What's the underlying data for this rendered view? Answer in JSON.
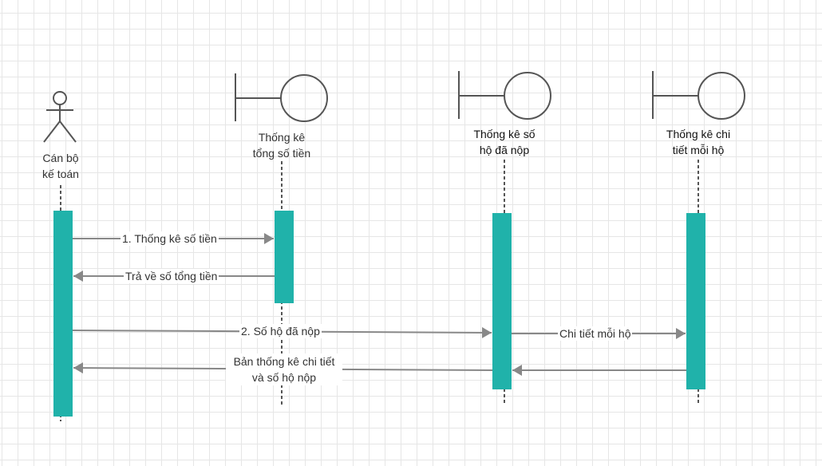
{
  "colors": {
    "activation": "#20b2aa",
    "stroke": "#555555",
    "arrow": "#888888",
    "text": "#333333"
  },
  "lifelines": [
    {
      "type": "actor",
      "name_line1": "Cán bộ",
      "name_line2": "kế toán"
    },
    {
      "type": "boundary",
      "name_line1": "Thống kê",
      "name_line2": "tổng số tiền"
    },
    {
      "type": "boundary",
      "name_line1": "Thống kê số",
      "name_line2": "hộ đã nộp"
    },
    {
      "type": "boundary",
      "name_line1": "Thống kê chi",
      "name_line2": "tiết mỗi hộ"
    }
  ],
  "messages": [
    {
      "from": 0,
      "to": 1,
      "kind": "call",
      "text": "1. Thống kê số tiền"
    },
    {
      "from": 1,
      "to": 0,
      "kind": "return",
      "text": "Trả về số tổng tiền"
    },
    {
      "from": 0,
      "to": 2,
      "kind": "call",
      "text": "2. Số hộ đã nộp"
    },
    {
      "from": 2,
      "to": 3,
      "kind": "call",
      "text": "Chi tiết mỗi hộ"
    },
    {
      "from": 3,
      "to": 2,
      "kind": "return",
      "text": ""
    },
    {
      "from": 2,
      "to": 0,
      "kind": "return",
      "text_line1": "Bản thống kê chi tiết",
      "text_line2": "và số hộ nộp"
    }
  ]
}
